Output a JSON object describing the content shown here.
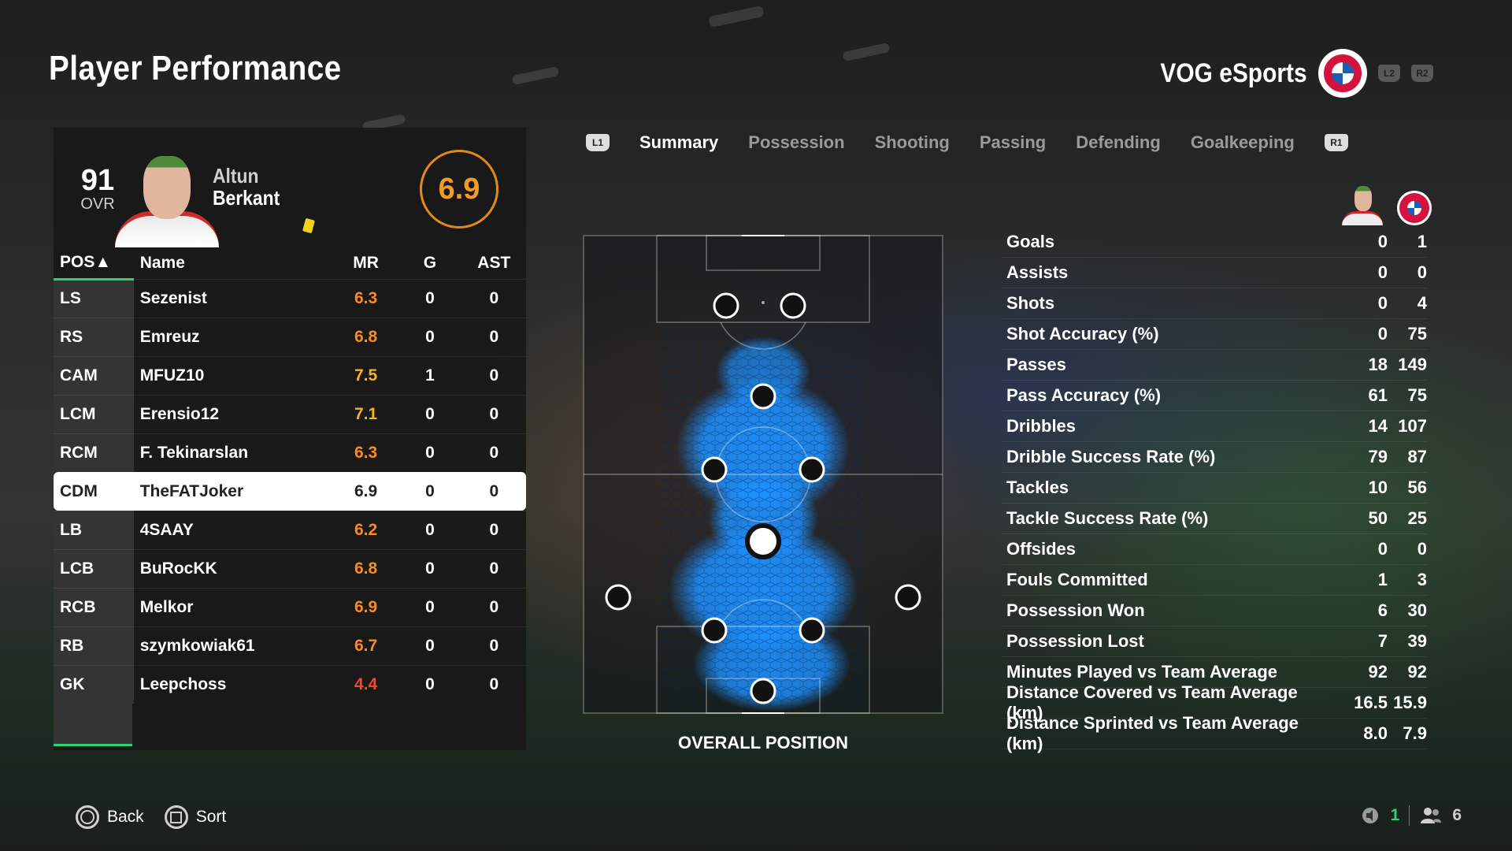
{
  "page_title": "Player Performance",
  "team": {
    "name": "VOG eSports",
    "shoulder_left": "L2",
    "shoulder_right": "R2"
  },
  "player": {
    "ovr": "91",
    "ovr_label": "OVR",
    "first_name": "Altun",
    "last_name": "Berkant",
    "match_rating": "6.9"
  },
  "table": {
    "headers": {
      "pos": "POS▲",
      "name": "Name",
      "mr": "MR",
      "g": "G",
      "ast": "AST"
    },
    "rows": [
      {
        "pos": "LS",
        "name": "Sezenist",
        "mr": "6.3",
        "g": "0",
        "ast": "0",
        "mr_color": "#ff8a1c"
      },
      {
        "pos": "RS",
        "name": "Emreuz",
        "mr": "6.8",
        "g": "0",
        "ast": "0",
        "mr_color": "#ff8a1c"
      },
      {
        "pos": "CAM",
        "name": "MFUZ10",
        "mr": "7.5",
        "g": "1",
        "ast": "0",
        "mr_color": "#f5b321"
      },
      {
        "pos": "LCM",
        "name": "Erensio12",
        "mr": "7.1",
        "g": "0",
        "ast": "0",
        "mr_color": "#f5b321"
      },
      {
        "pos": "RCM",
        "name": "F. Tekinarslan",
        "mr": "6.3",
        "g": "0",
        "ast": "0",
        "mr_color": "#ff8a1c"
      },
      {
        "pos": "CDM",
        "name": "TheFATJoker",
        "mr": "6.9",
        "g": "0",
        "ast": "0",
        "mr_color": "#222222"
      },
      {
        "pos": "LB",
        "name": "4SAAY",
        "mr": "6.2",
        "g": "0",
        "ast": "0",
        "mr_color": "#ff8a1c"
      },
      {
        "pos": "LCB",
        "name": "BuRocKK",
        "mr": "6.8",
        "g": "0",
        "ast": "0",
        "mr_color": "#ff8a1c"
      },
      {
        "pos": "RCB",
        "name": "Melkor",
        "mr": "6.9",
        "g": "0",
        "ast": "0",
        "mr_color": "#ff8a1c"
      },
      {
        "pos": "RB",
        "name": "szymkowiak61",
        "mr": "6.7",
        "g": "0",
        "ast": "0",
        "mr_color": "#ff8a1c"
      },
      {
        "pos": "GK",
        "name": "Leepchoss",
        "mr": "4.4",
        "g": "0",
        "ast": "0",
        "mr_color": "#f04a2c"
      }
    ],
    "selected_index": 5
  },
  "tabs": {
    "left_shoulder": "L1",
    "right_shoulder": "R1",
    "items": [
      "Summary",
      "Possession",
      "Shooting",
      "Passing",
      "Defending",
      "Goalkeeping"
    ],
    "active": "Summary"
  },
  "pitch": {
    "caption": "OVERALL POSITION"
  },
  "stats": [
    {
      "label": "Goals",
      "player": "0",
      "team": "1"
    },
    {
      "label": "Assists",
      "player": "0",
      "team": "0"
    },
    {
      "label": "Shots",
      "player": "0",
      "team": "4"
    },
    {
      "label": "Shot Accuracy (%)",
      "player": "0",
      "team": "75"
    },
    {
      "label": "Passes",
      "player": "18",
      "team": "149"
    },
    {
      "label": "Pass Accuracy (%)",
      "player": "61",
      "team": "75"
    },
    {
      "label": "Dribbles",
      "player": "14",
      "team": "107"
    },
    {
      "label": "Dribble Success Rate (%)",
      "player": "79",
      "team": "87"
    },
    {
      "label": "Tackles",
      "player": "10",
      "team": "56"
    },
    {
      "label": "Tackle Success Rate (%)",
      "player": "50",
      "team": "25"
    },
    {
      "label": "Offsides",
      "player": "0",
      "team": "0"
    },
    {
      "label": "Fouls Committed",
      "player": "1",
      "team": "3"
    },
    {
      "label": "Possession Won",
      "player": "6",
      "team": "30"
    },
    {
      "label": "Possession Lost",
      "player": "7",
      "team": "39"
    },
    {
      "label": "Minutes Played vs Team Average",
      "player": "92",
      "team": "92"
    },
    {
      "label": "Distance Covered vs Team Average (km)",
      "player": "16.5",
      "team": "15.9"
    },
    {
      "label": "Distance Sprinted vs Team Average (km)",
      "player": "8.0",
      "team": "7.9"
    }
  ],
  "footer": {
    "back_label": "Back",
    "sort_label": "Sort",
    "mic_count": "1",
    "party_count": "6"
  },
  "colors": {
    "accent_green": "#2fd17a",
    "rating_orange": "#f39c25",
    "heatmap_blue": "#1e90ff"
  }
}
